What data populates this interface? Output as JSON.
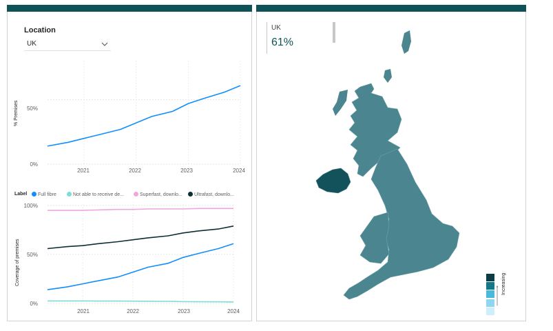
{
  "location_slicer": {
    "title": "Location",
    "selected": "UK"
  },
  "chart_top": {
    "ylabel": "% Premises",
    "y_ticks": [
      "0%",
      "50%"
    ],
    "x_ticks": [
      "2021",
      "2022",
      "2023",
      "2024"
    ]
  },
  "legend": {
    "title": "Label",
    "items": [
      {
        "label": "Full fibre",
        "color": "#118dff"
      },
      {
        "label": "Not able to receive de...",
        "color": "#7fdcd9"
      },
      {
        "label": "Superfast, downlo...",
        "color": "#f2a6dd"
      },
      {
        "label": "Ultrafast, downlo...",
        "color": "#0c2e33"
      }
    ]
  },
  "chart_bottom": {
    "ylabel": "Coverage of premises",
    "y_ticks": [
      "0%",
      "50%",
      "100%"
    ],
    "x_ticks": [
      "2021",
      "2022",
      "2023",
      "2024"
    ]
  },
  "chart_data": [
    {
      "type": "line",
      "x": [
        2020.3,
        2020.7,
        2021.0,
        2021.3,
        2021.7,
        2022.0,
        2022.3,
        2022.7,
        2023.0,
        2023.3,
        2023.7,
        2024.0
      ],
      "series": [
        {
          "name": "Full fibre",
          "values": [
            14,
            17,
            20,
            23,
            27,
            32,
            37,
            41,
            47,
            51,
            56,
            61
          ]
        }
      ],
      "xlim": [
        2020.3,
        2024.0
      ],
      "ylim": [
        0,
        75
      ],
      "ylabel": "% Premises"
    },
    {
      "type": "line",
      "x": [
        2020.3,
        2020.7,
        2021.0,
        2021.3,
        2021.7,
        2022.0,
        2022.3,
        2022.7,
        2023.0,
        2023.3,
        2023.7,
        2024.0
      ],
      "series": [
        {
          "name": "Full fibre",
          "color": "#118dff",
          "values": [
            14,
            17,
            20,
            23,
            27,
            32,
            37,
            41,
            47,
            51,
            56,
            61
          ]
        },
        {
          "name": "Not able to receive de...",
          "color": "#7fdcd9",
          "values": [
            2.5,
            2.5,
            2.5,
            2.4,
            2.4,
            2.3,
            2.2,
            2.1,
            1.8,
            1.7,
            1.6,
            1.5
          ]
        },
        {
          "name": "Superfast, downlo...",
          "color": "#f2a6dd",
          "values": [
            95,
            95,
            95,
            95.5,
            96,
            96,
            96.5,
            96.5,
            96.5,
            97,
            97,
            97
          ]
        },
        {
          "name": "Ultrafast, downlo...",
          "color": "#0c2e33",
          "values": [
            56,
            58,
            59,
            61,
            63,
            65,
            67,
            69,
            72,
            74,
            76,
            79
          ]
        }
      ],
      "xlim": [
        2020.3,
        2024.0
      ],
      "ylim": [
        0,
        100
      ],
      "ylabel": "Coverage of premises"
    }
  ],
  "map": {
    "kpi_label": "UK",
    "kpi_value": "61%",
    "legend_label": "Increasing",
    "scale_colors": [
      "#0c3c44",
      "#12788a",
      "#4ab9dc",
      "#8fd6ef",
      "#cdeefa"
    ],
    "regions": [
      {
        "name": "Scotland",
        "color": "#4b8690"
      },
      {
        "name": "Northern Ireland",
        "color": "#14525b"
      },
      {
        "name": "England",
        "color": "#4b8690"
      },
      {
        "name": "Wales",
        "color": "#4b8690"
      }
    ]
  }
}
